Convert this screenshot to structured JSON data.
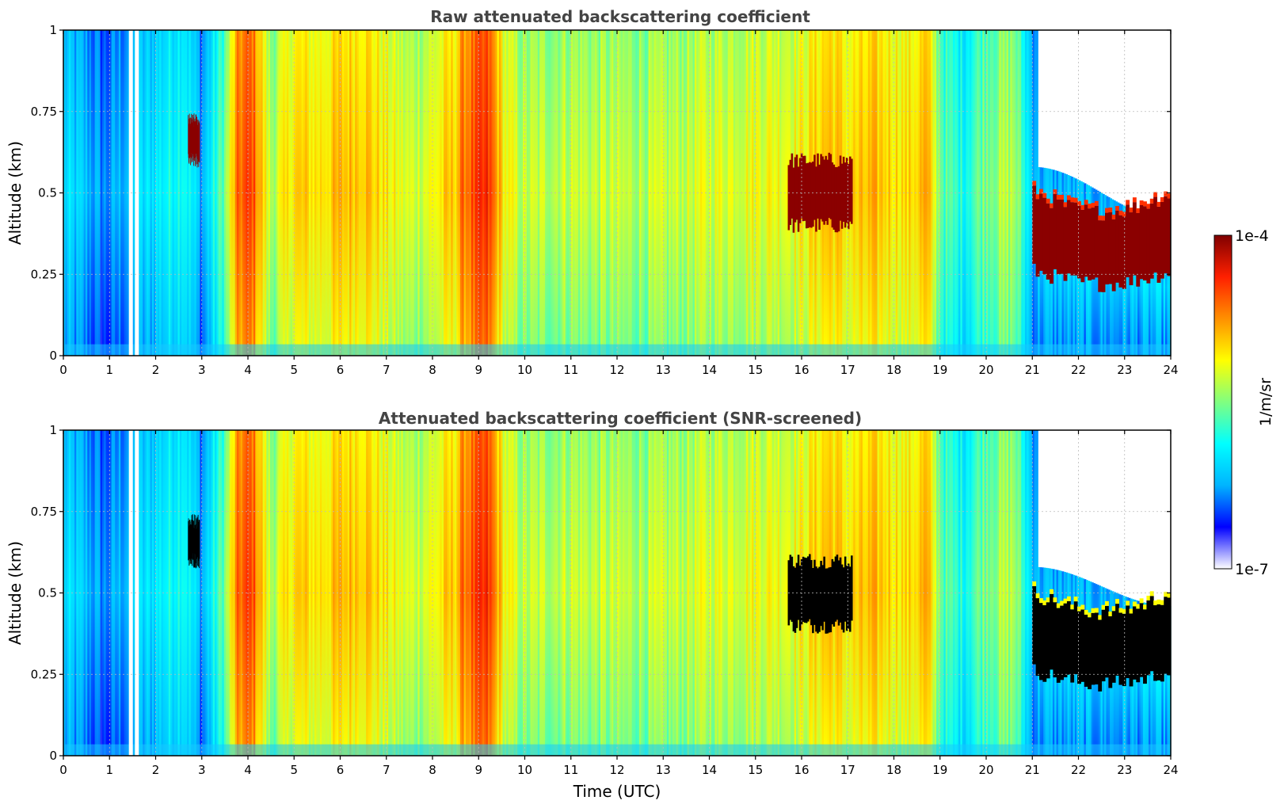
{
  "chart_data": {
    "type": "heatmap",
    "shared_colorbar": {
      "label": "1/m/sr",
      "min_label": "1e-7",
      "max_label": "1e-4",
      "scale": "log",
      "colormap": [
        "#ffffff",
        "#0000ff",
        "#00b4ff",
        "#00ffff",
        "#80ff80",
        "#ffff00",
        "#ff9000",
        "#ff2000",
        "#800000"
      ]
    },
    "panels": [
      {
        "title": "Raw attenuated backscattering coefficient",
        "ylabel": "Altitude (km)",
        "xlabel": "",
        "xlim": [
          0,
          24
        ],
        "ylim": [
          0,
          1
        ],
        "xticks": [
          "0",
          "1",
          "2",
          "3",
          "4",
          "5",
          "6",
          "7",
          "8",
          "9",
          "10",
          "11",
          "12",
          "13",
          "14",
          "15",
          "16",
          "17",
          "18",
          "19",
          "20",
          "21",
          "22",
          "23",
          "24"
        ],
        "yticks": [
          {
            "value": 0,
            "label": "0"
          },
          {
            "value": 0.25,
            "label": "0.25"
          },
          {
            "value": 0.5,
            "label": "0.5"
          },
          {
            "value": 0.75,
            "label": "0.75"
          },
          {
            "value": 1,
            "label": "1"
          }
        ],
        "grid": true,
        "screened": false
      },
      {
        "title": "Attenuated backscattering coefficient (SNR-screened)",
        "ylabel": "Altitude (km)",
        "xlabel": "Time (UTC)",
        "xlim": [
          0,
          24
        ],
        "ylim": [
          0,
          1
        ],
        "xticks": [
          "0",
          "1",
          "2",
          "3",
          "4",
          "5",
          "6",
          "7",
          "8",
          "9",
          "10",
          "11",
          "12",
          "13",
          "14",
          "15",
          "16",
          "17",
          "18",
          "19",
          "20",
          "21",
          "22",
          "23",
          "24"
        ],
        "yticks": [
          {
            "value": 0,
            "label": "0"
          },
          {
            "value": 0.25,
            "label": "0.25"
          },
          {
            "value": 0.5,
            "label": "0.5"
          },
          {
            "value": 0.75,
            "label": "0.75"
          },
          {
            "value": 1,
            "label": "1"
          }
        ],
        "grid": true,
        "screened": true
      }
    ],
    "column_profile": {
      "description_time_hours": [
        0,
        0.5,
        0.9,
        1.45,
        1.6,
        2.1,
        2.6,
        3.0,
        3.5,
        3.8,
        4.1,
        4.5,
        5.0,
        5.5,
        6.0,
        6.5,
        7.0,
        7.5,
        8.0,
        8.5,
        8.7,
        9.2,
        9.6,
        10.0,
        11.0,
        12.0,
        13.0,
        14.0,
        15.0,
        16.0,
        16.6,
        17.0,
        17.6,
        18.3,
        18.7,
        19.1,
        19.5,
        20.0,
        20.6,
        21.0,
        24.0
      ],
      "level_0to1": [
        0.32,
        0.28,
        0.22,
        0.3,
        0.3,
        0.36,
        0.42,
        0.26,
        0.5,
        0.8,
        0.84,
        0.55,
        0.68,
        0.66,
        0.7,
        0.72,
        0.64,
        0.58,
        0.62,
        0.7,
        0.8,
        0.86,
        0.62,
        0.56,
        0.58,
        0.56,
        0.56,
        0.6,
        0.62,
        0.64,
        0.72,
        0.66,
        0.7,
        0.66,
        0.72,
        0.46,
        0.4,
        0.52,
        0.56,
        0.3,
        0.3
      ]
    },
    "cloud_layers": [
      {
        "t0": 2.7,
        "t1": 2.95,
        "alt_bottom": 0.6,
        "alt_top": 0.72
      },
      {
        "t0": 15.7,
        "t1": 17.1,
        "alt_bottom": 0.4,
        "alt_top": 0.6
      },
      {
        "t0": 21.0,
        "t1": 24.0,
        "alt_bottom": 0.26,
        "alt_top": 0.5
      }
    ]
  }
}
